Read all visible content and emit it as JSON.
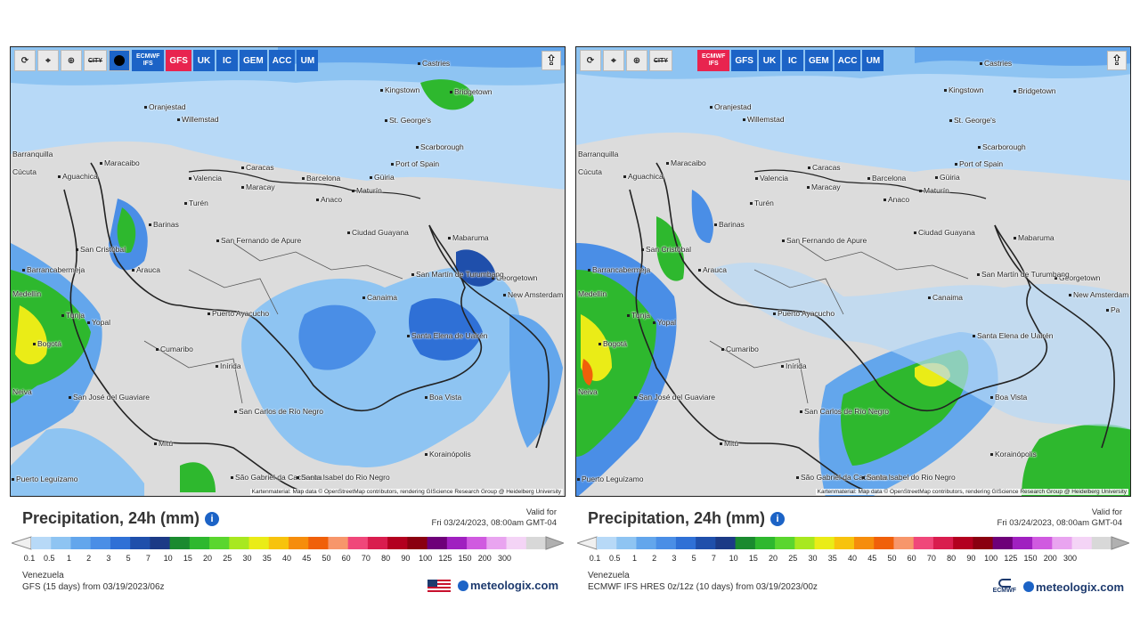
{
  "toolbar_tools": [
    "reload-icon",
    "location-pin-icon",
    "zoom-icon",
    "city-toggle-icon",
    "dot-icon"
  ],
  "city_label": "CITY",
  "panels": [
    {
      "id": "left",
      "models": [
        {
          "label": "ECMWF IFS",
          "line1": "ECMWF",
          "line2": "IFS",
          "active": false
        },
        {
          "label": "GFS",
          "active": true
        },
        {
          "label": "UK",
          "active": false
        },
        {
          "label": "IC",
          "active": false
        },
        {
          "label": "GEM",
          "active": false
        },
        {
          "label": "ACC",
          "active": false
        },
        {
          "label": "UM",
          "active": false
        }
      ],
      "title": "Precipitation, 24h (mm)",
      "valid_for_label": "Valid for",
      "valid_time": "Fri 03/24/2023, 08:00am GMT-04",
      "region": "Venezuela",
      "run": "GFS (15 days) from 03/19/2023/06z",
      "brand": "meteologix.com",
      "logo": "us-flag"
    },
    {
      "id": "right",
      "models": [
        {
          "label": "ECMWF IFS",
          "line1": "ECMWF",
          "line2": "IFS",
          "active": true
        },
        {
          "label": "GFS",
          "active": false
        },
        {
          "label": "UK",
          "active": false
        },
        {
          "label": "IC",
          "active": false
        },
        {
          "label": "GEM",
          "active": false
        },
        {
          "label": "ACC",
          "active": false
        },
        {
          "label": "UM",
          "active": false
        }
      ],
      "title": "Precipitation, 24h (mm)",
      "valid_for_label": "Valid for",
      "valid_time": "Fri 03/24/2023, 08:00am GMT-04",
      "region": "Venezuela",
      "run": "ECMWF IFS HRES 0z/12z (10 days) from 03/19/2023/00z",
      "brand": "meteologix.com",
      "logo": "ECMWF"
    }
  ],
  "attribution": "Kartenmaterial: Map data © OpenStreetMap contributors, rendering GIScience Research Group @ Heidelberg University",
  "cities": [
    "Castries",
    "Kingstown",
    "Bridgetown",
    "St. George's",
    "Oranjestad",
    "Willemstad",
    "Scarborough",
    "Port of Spain",
    "Barranquilla",
    "Maracaibo",
    "Valencia",
    "Caracas",
    "Maracay",
    "Barcelona",
    "Güiria",
    "Maturín",
    "Aguachica",
    "Cúcuta",
    "Turén",
    "Anaco",
    "Barinas",
    "Ciudad Guayana",
    "Mabaruma",
    "San Cristóbal",
    "San Fernando de Apure",
    "Georgetown",
    "Barrancabermeja",
    "Arauca",
    "San Martín de Turumbang",
    "New Amsterdam",
    "Canaima",
    "Medellín",
    "Puerto Ayacucho",
    "Tunja",
    "Yopal",
    "Santa Elena de Uairén",
    "Bogotá",
    "Cumaribo",
    "Inírida",
    "Neiva",
    "Boa Vista",
    "San José del Guaviare",
    "San Carlos de Río Negro",
    "Mitú",
    "Korainópolis",
    "Puerto Leguízamo",
    "São Gabriel da Cachoeira",
    "Santa Isabel do Rio Negro",
    "Pa"
  ],
  "scale": {
    "ticks": [
      "0.1",
      "0.5",
      "1",
      "2",
      "3",
      "5",
      "7",
      "10",
      "15",
      "20",
      "25",
      "30",
      "35",
      "40",
      "45",
      "50",
      "60",
      "70",
      "80",
      "90",
      "100",
      "125",
      "150",
      "200",
      "300"
    ],
    "colors": [
      "#b7d9f7",
      "#8ec4f2",
      "#63a6ec",
      "#4a8ee6",
      "#2f70d6",
      "#1f4fab",
      "#1c3a86",
      "#1a8a2f",
      "#2eb82e",
      "#5ad62e",
      "#a8e81f",
      "#eaec17",
      "#f7c30d",
      "#f68d0c",
      "#f0600a",
      "#f7966b",
      "#f0477a",
      "#d91d4e",
      "#b3001f",
      "#8a0010",
      "#6e0079",
      "#a020c0",
      "#d05ae0",
      "#e9a4f0",
      "#f4d4f6",
      "#d8d8d8"
    ]
  }
}
